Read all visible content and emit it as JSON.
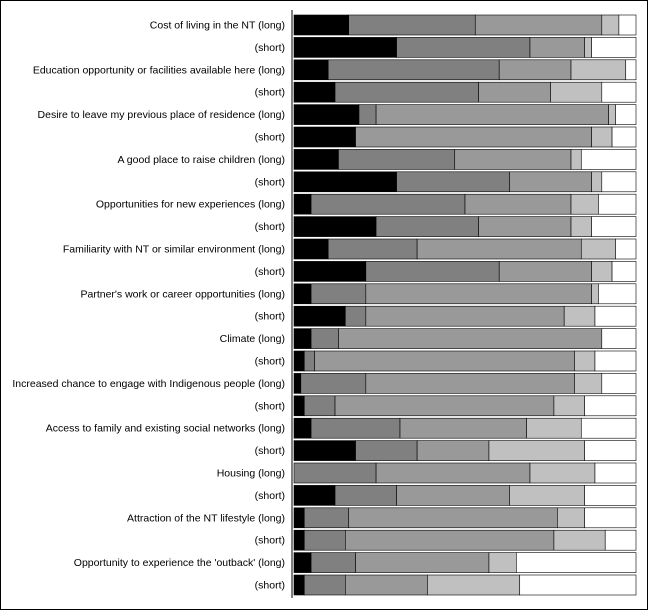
{
  "chart_data": {
    "type": "bar",
    "orientation": "horizontal",
    "stacked": true,
    "normalized": true,
    "xlim": [
      0,
      100
    ],
    "grid": false,
    "legend": "none",
    "segment_colors": [
      "#000000",
      "#808080",
      "#999999",
      "#c0c0c0",
      "#ffffff"
    ],
    "categories": [
      "Cost of living in the NT (long)",
      "(short)",
      "Education opportunity or facilities available here (long)",
      "(short)",
      "Desire to leave my previous place of residence (long)",
      "(short)",
      "A good place to raise children (long)",
      "(short)",
      "Opportunities for new experiences (long)",
      "(short)",
      "Familiarity with NT or similar environment (long)",
      "(short)",
      "Partner's work or career opportunities (long)",
      "(short)",
      "Climate (long)",
      "(short)",
      "Increased chance to engage with Indigenous people (long)",
      "(short)",
      "Access to family and existing social networks (long)",
      "(short)",
      "Housing (long)",
      "(short)",
      "Attraction of the NT lifestyle (long)",
      "(short)",
      "Opportunity to experience the 'outback' (long)",
      "(short)"
    ],
    "series": [
      {
        "values": [
          16,
          30,
          10,
          12,
          19,
          18,
          13,
          30,
          5,
          24,
          10,
          21,
          5,
          15,
          5,
          3,
          2,
          3,
          5,
          18,
          0,
          12,
          3,
          3,
          5,
          3
        ]
      },
      {
        "values": [
          37,
          39,
          50,
          42,
          5,
          0,
          34,
          33,
          45,
          30,
          26,
          39,
          16,
          6,
          8,
          3,
          19,
          9,
          26,
          18,
          24,
          18,
          13,
          12,
          13,
          12
        ]
      },
      {
        "values": [
          37,
          16,
          21,
          21,
          68,
          69,
          34,
          24,
          31,
          27,
          48,
          27,
          66,
          58,
          77,
          76,
          61,
          64,
          37,
          21,
          45,
          33,
          61,
          61,
          39,
          24
        ]
      },
      {
        "values": [
          5,
          2,
          16,
          15,
          2,
          6,
          3,
          3,
          8,
          6,
          10,
          6,
          2,
          9,
          0,
          6,
          8,
          9,
          16,
          28,
          19,
          22,
          8,
          15,
          8,
          27
        ]
      },
      {
        "values": [
          5,
          13,
          3,
          10,
          6,
          7,
          16,
          10,
          11,
          13,
          6,
          7,
          11,
          12,
          10,
          12,
          10,
          15,
          16,
          15,
          12,
          15,
          15,
          9,
          35,
          34
        ]
      }
    ]
  }
}
